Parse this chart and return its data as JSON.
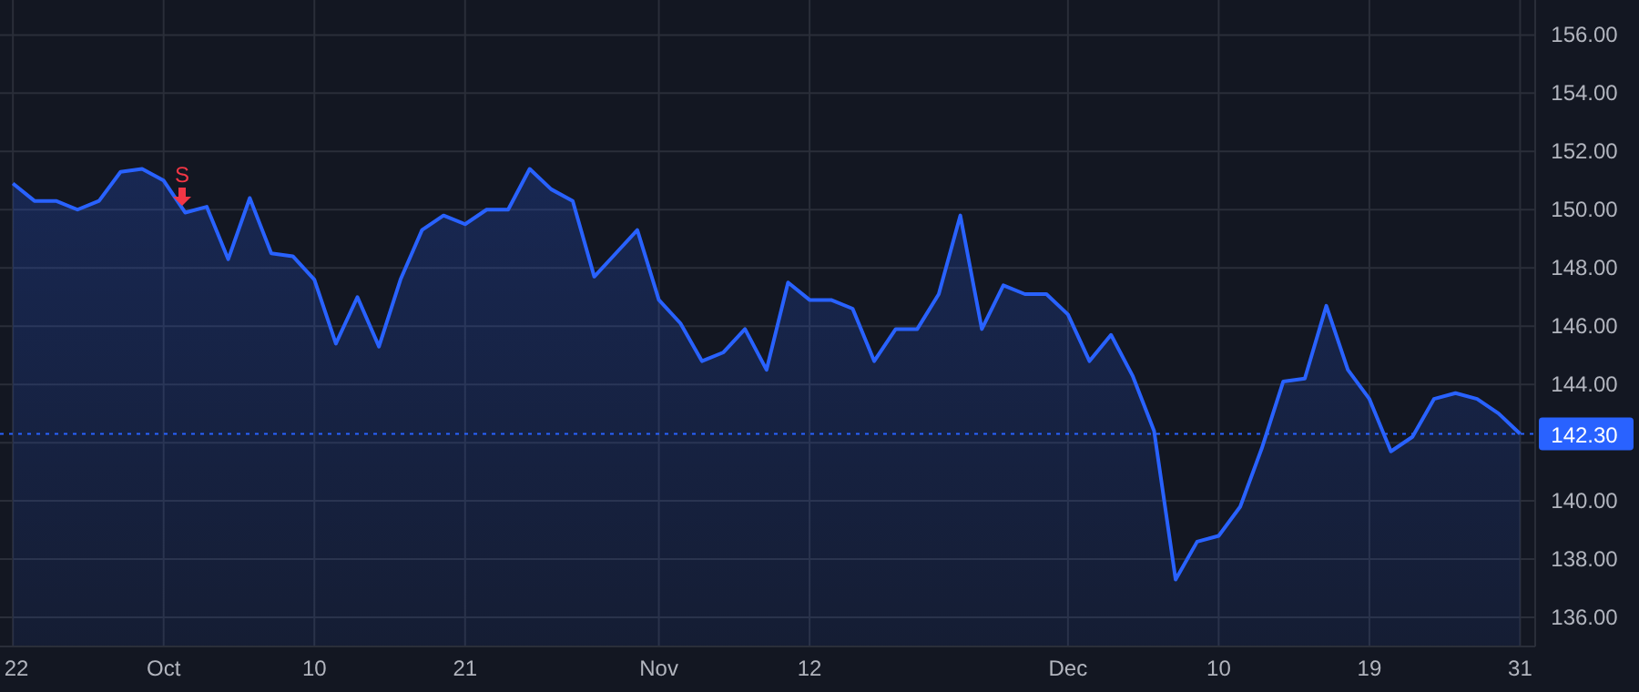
{
  "chart_data": {
    "type": "area",
    "categories": [
      "22",
      null,
      null,
      null,
      null,
      null,
      null,
      "Oct",
      null,
      null,
      null,
      null,
      null,
      null,
      "10",
      null,
      null,
      null,
      null,
      null,
      null,
      "21",
      null,
      null,
      null,
      null,
      null,
      null,
      null,
      null,
      "Nov",
      null,
      null,
      null,
      null,
      null,
      null,
      "12",
      null,
      null,
      null,
      null,
      null,
      null,
      null,
      null,
      null,
      null,
      null,
      "Dec",
      null,
      null,
      null,
      null,
      null,
      null,
      "10",
      null,
      null,
      null,
      null,
      null,
      null,
      "19",
      null,
      null,
      null,
      null,
      null,
      null,
      "31"
    ],
    "series": [
      {
        "color": "#2962ff",
        "values": [
          150.9,
          150.3,
          150.3,
          150.0,
          150.3,
          151.3,
          151.4,
          151.0,
          149.9,
          150.1,
          148.3,
          150.4,
          148.5,
          148.4,
          147.6,
          145.4,
          147.0,
          145.3,
          147.6,
          149.3,
          149.8,
          149.5,
          150.0,
          150.0,
          151.4,
          150.7,
          150.3,
          147.7,
          148.5,
          149.3,
          146.9,
          146.1,
          144.8,
          145.1,
          145.9,
          144.5,
          147.5,
          146.9,
          146.9,
          146.6,
          144.8,
          145.9,
          145.9,
          147.1,
          149.8,
          145.9,
          147.4,
          147.1,
          147.1,
          146.4,
          144.8,
          145.7,
          144.3,
          142.4,
          137.3,
          138.6,
          138.8,
          139.8,
          141.8,
          144.1,
          144.2,
          146.7,
          144.5,
          143.5,
          141.7,
          142.2,
          143.5,
          143.7,
          143.5,
          143.0,
          142.3
        ]
      }
    ],
    "ylim": [
      135,
      157.2
    ],
    "yticks": [
      {
        "value": 136,
        "label": "136.00"
      },
      {
        "value": 138,
        "label": "138.00"
      },
      {
        "value": 140,
        "label": "140.00"
      },
      {
        "value": 142,
        "label": null
      },
      {
        "value": 144,
        "label": "144.00"
      },
      {
        "value": 146,
        "label": "146.00"
      },
      {
        "value": 148,
        "label": "148.00"
      },
      {
        "value": 150,
        "label": "150.00"
      },
      {
        "value": 152,
        "label": "152.00"
      },
      {
        "value": 154,
        "label": "154.00"
      },
      {
        "value": 156,
        "label": "156.00"
      }
    ],
    "grid": true,
    "ref_lines": [
      {
        "axis": "y",
        "value": 142.3,
        "label": "142.30",
        "color": "#2962ff",
        "line_style": "dotted"
      }
    ],
    "annotations": [
      "S"
    ]
  }
}
